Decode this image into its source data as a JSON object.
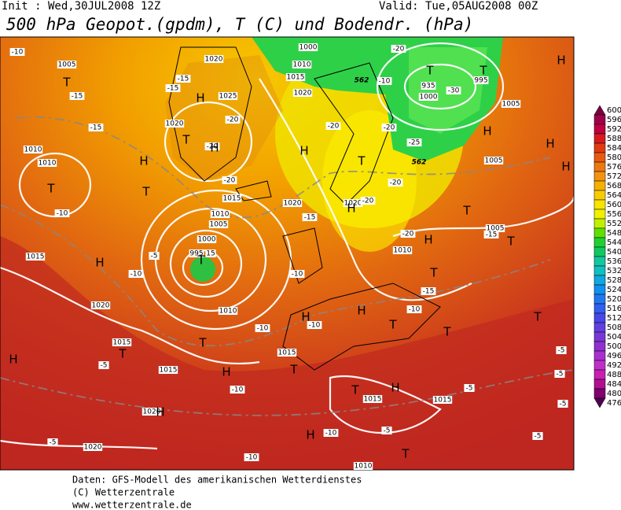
{
  "header": {
    "init": "Init : Wed,30JUL2008 12Z",
    "valid": "Valid: Tue,05AUG2008 00Z",
    "title": "500 hPa Geopot.(gpdm), T (C) und Bodendr. (hPa)"
  },
  "legend": {
    "levels": [
      600,
      596,
      592,
      588,
      584,
      580,
      576,
      572,
      568,
      564,
      560,
      556,
      552,
      548,
      544,
      540,
      536,
      532,
      528,
      524,
      520,
      516,
      512,
      508,
      504,
      500,
      496,
      492,
      488,
      484,
      480,
      476
    ]
  },
  "map": {
    "pressure_labels": [
      "1005",
      "1020",
      "1025",
      "1020",
      "1010",
      "1010",
      "1015",
      "1010",
      "1005",
      "1000",
      "995",
      "15",
      "1015",
      "1020",
      "1010",
      "1015",
      "1015",
      "1015",
      "1020",
      "1020",
      "1010",
      "1005",
      "1005",
      "1005",
      "1010",
      "1015",
      "1020",
      "1000",
      "995",
      "935",
      "1000",
      "1015",
      "1015",
      "1020",
      "1020",
      "1010"
    ],
    "temp_labels": [
      "-10",
      "-15",
      "-15",
      "-15",
      "-15",
      "-20",
      "-20",
      "-20",
      "-20",
      "-20",
      "-20",
      "-10",
      "-30",
      "-25",
      "-20",
      "-20",
      "-15",
      "-20",
      "-15",
      "-10",
      "-5",
      "-10",
      "-10",
      "-10",
      "-10",
      "-10",
      "-15",
      "-5",
      "-10",
      "-5",
      "-10",
      "-5",
      "-5",
      "-5",
      "-10",
      "-5",
      "-5",
      "-5"
    ],
    "contour_labels": [
      "562",
      "562"
    ],
    "highs_lows": [
      "T",
      "H",
      "T",
      "H",
      "H",
      "T",
      "T",
      "H",
      "T",
      "H",
      "T",
      "T",
      "H",
      "H",
      "H",
      "H",
      "T",
      "T",
      "H",
      "T",
      "H",
      "T",
      "H",
      "H",
      "T",
      "T",
      "T",
      "T",
      "T",
      "H",
      "H",
      "T",
      "T",
      "H",
      "H",
      "H",
      "T"
    ]
  },
  "footer": {
    "source": "Daten: GFS-Modell des amerikanischen Wetterdienstes",
    "copyright": "(C) Wetterzentrale",
    "url": "www.wetterzentrale.de"
  }
}
